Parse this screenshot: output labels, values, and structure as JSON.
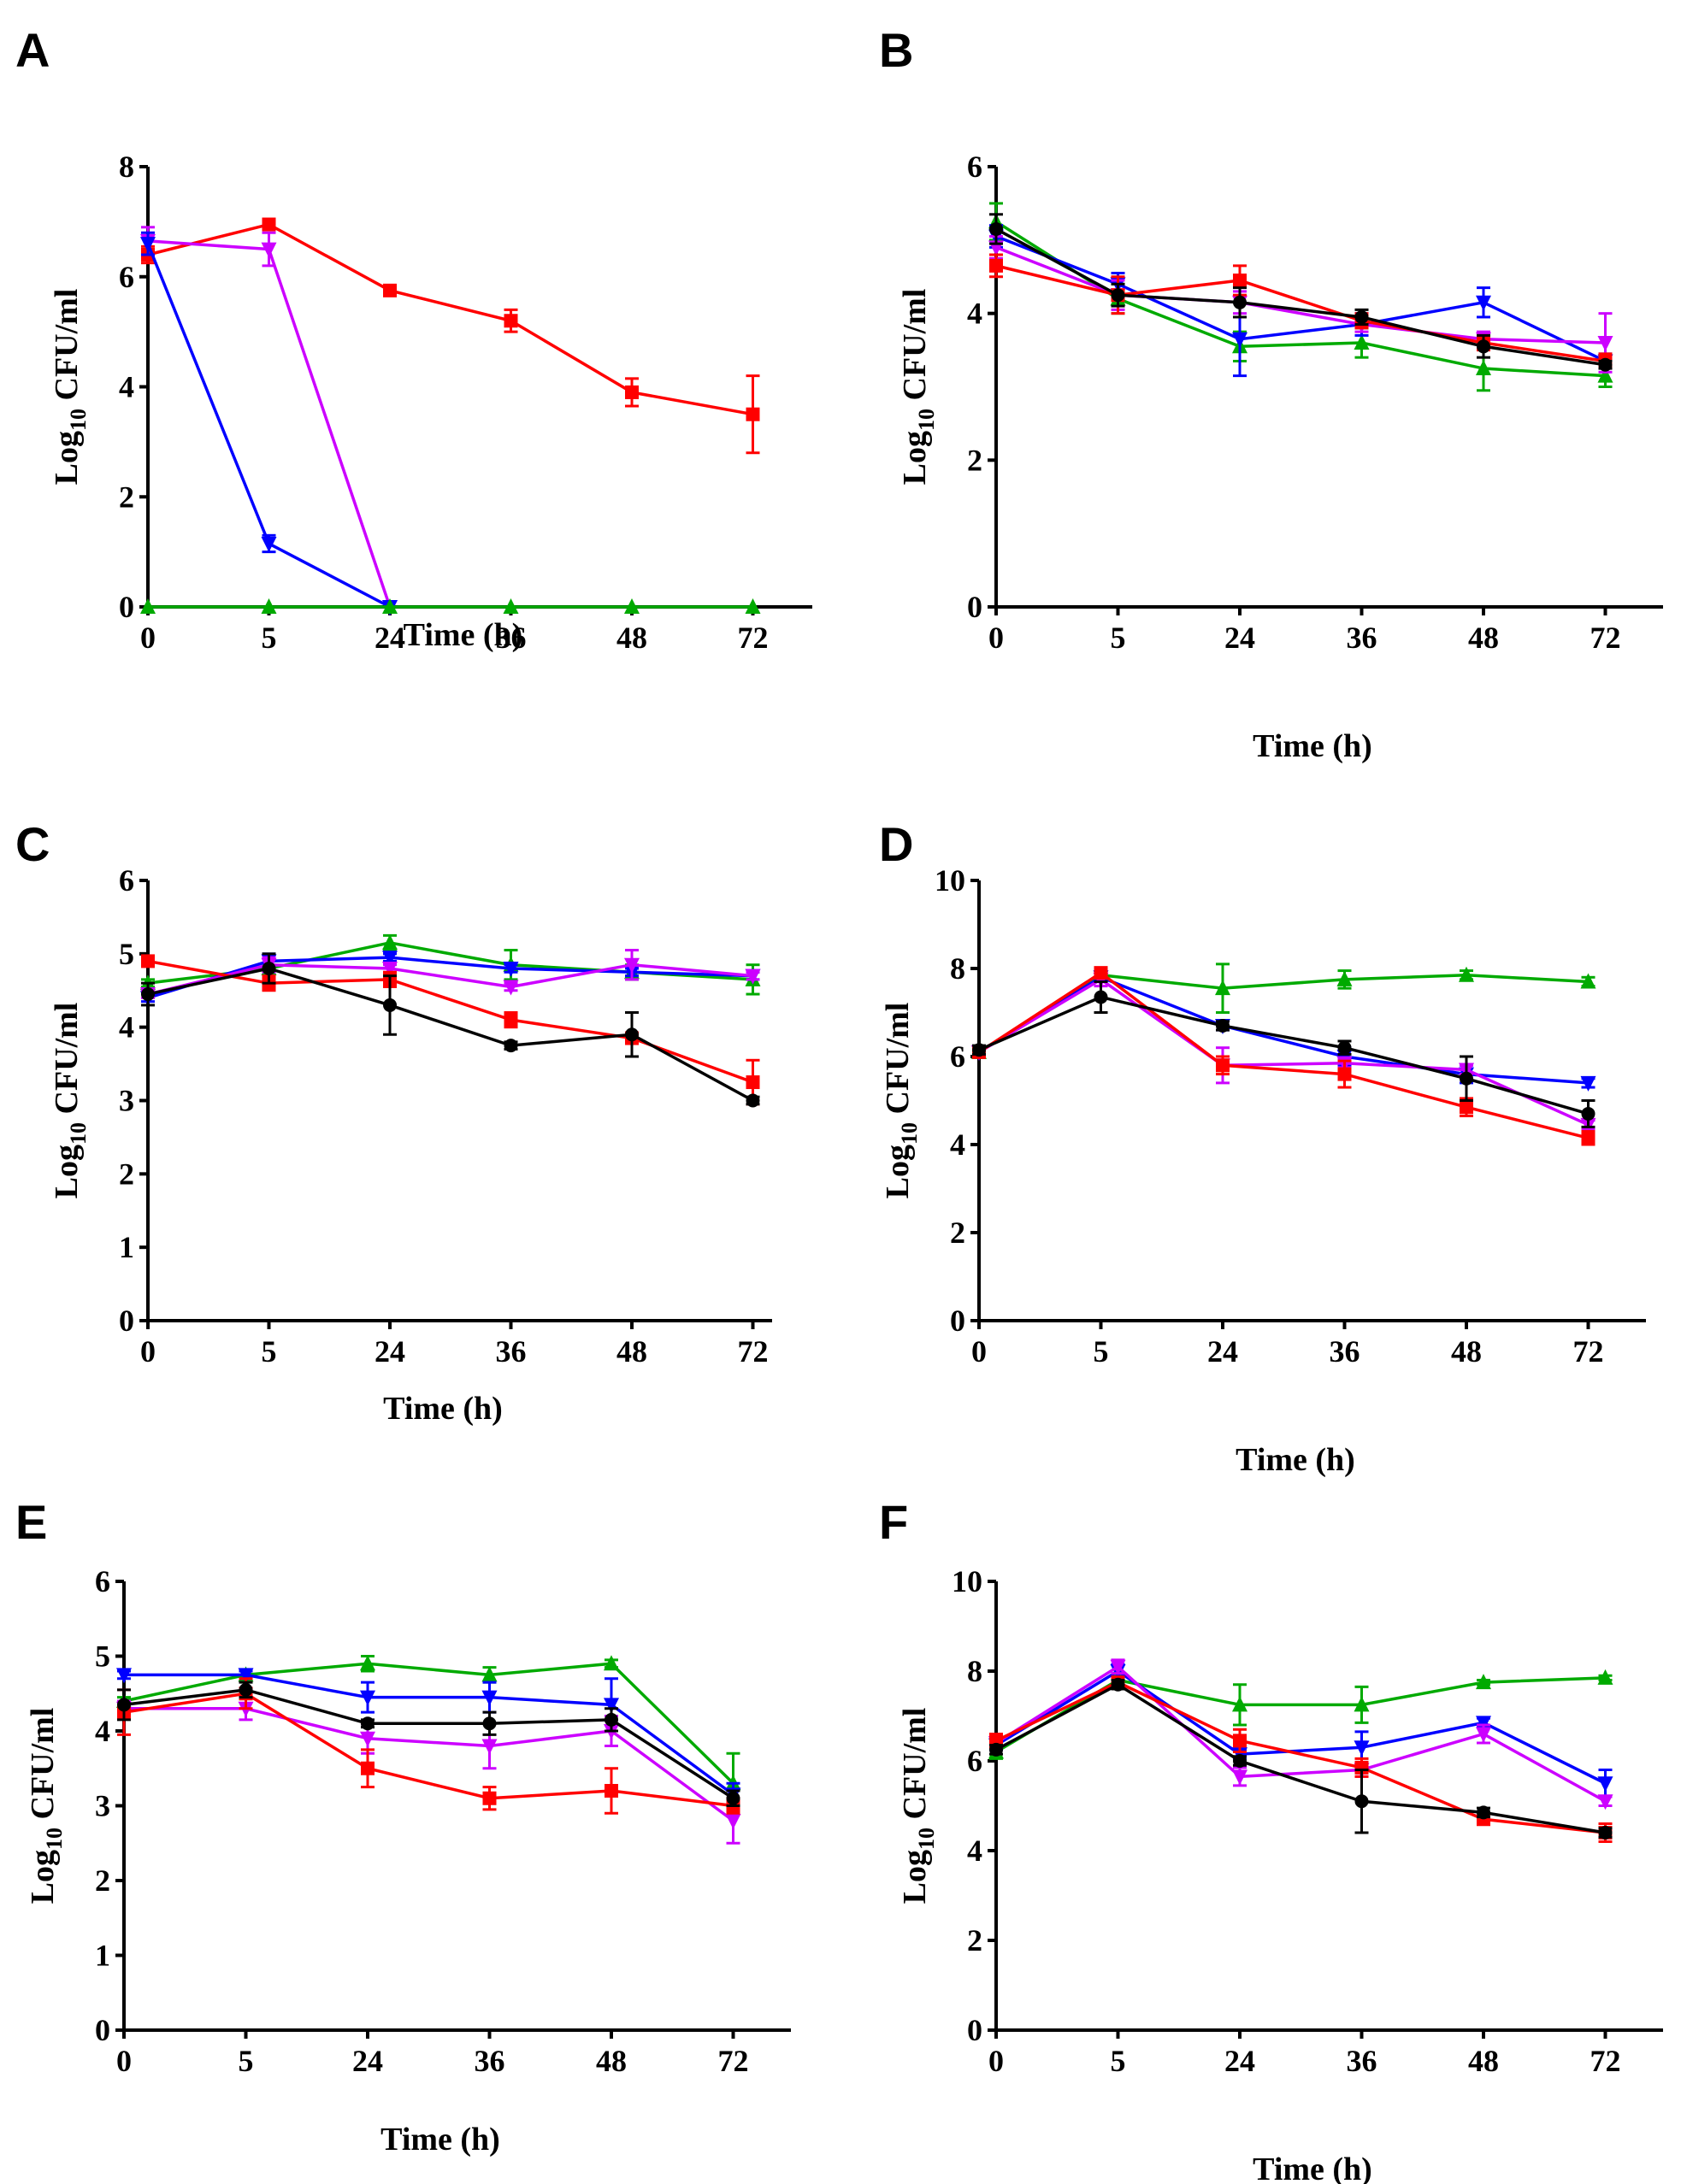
{
  "chart_data": [
    {
      "panel": "A",
      "type": "line",
      "categories": [
        "0",
        "5",
        "24",
        "36",
        "48",
        "72"
      ],
      "xlabel": "Time (h)",
      "ylabel_main": "Log",
      "ylabel_sub": "10",
      "ylabel_tail": " CFU/ml",
      "ylim": [
        0,
        8
      ],
      "yticks": [
        "0",
        "2",
        "4",
        "6",
        "8"
      ],
      "series": [
        {
          "color": "#ff0000",
          "marker": "square",
          "values": [
            6.4,
            6.95,
            5.75,
            5.2,
            3.9,
            3.5
          ],
          "errors": [
            0.15,
            0.1,
            0.05,
            0.2,
            0.25,
            0.7
          ]
        },
        {
          "color": "#cc00ff",
          "marker": "triangle-down",
          "values": [
            6.65,
            6.5,
            0,
            null,
            null,
            null
          ],
          "errors": [
            0.25,
            0.3,
            0,
            0,
            0,
            0
          ]
        },
        {
          "color": "#0000ff",
          "marker": "triangle-down",
          "values": [
            6.6,
            1.15,
            0,
            null,
            null,
            null
          ],
          "errors": [
            0.2,
            0.15,
            0,
            0,
            0,
            0
          ]
        },
        {
          "color": "#00aa00",
          "marker": "triangle",
          "values": [
            0,
            0,
            0,
            0,
            0,
            0
          ],
          "errors": [
            0,
            0,
            0,
            0,
            0,
            0
          ]
        }
      ]
    },
    {
      "panel": "B",
      "type": "line",
      "categories": [
        "0",
        "5",
        "24",
        "36",
        "48",
        "72"
      ],
      "xlabel": "Time (h)",
      "ylabel_main": "Log",
      "ylabel_sub": "10",
      "ylabel_tail": " CFU/ml",
      "ylim": [
        0,
        6
      ],
      "yticks": [
        "0",
        "2",
        "4",
        "6"
      ],
      "series": [
        {
          "color": "#00aa00",
          "marker": "triangle",
          "values": [
            5.25,
            4.2,
            3.55,
            3.6,
            3.25,
            3.15
          ],
          "errors": [
            0.25,
            0.2,
            0.2,
            0.2,
            0.3,
            0.15
          ]
        },
        {
          "color": "#0000ff",
          "marker": "triangle-down",
          "values": [
            5.05,
            4.4,
            3.65,
            3.85,
            4.15,
            3.35
          ],
          "errors": [
            0.15,
            0.15,
            0.5,
            0.15,
            0.2,
            0.1
          ]
        },
        {
          "color": "#cc00ff",
          "marker": "triangle-down",
          "values": [
            4.9,
            4.25,
            4.15,
            3.85,
            3.65,
            3.6
          ],
          "errors": [
            0.15,
            0.2,
            0.15,
            0.1,
            0.1,
            0.4
          ]
        },
        {
          "color": "#ff0000",
          "marker": "square",
          "values": [
            4.65,
            4.25,
            4.45,
            3.9,
            3.6,
            3.35
          ],
          "errors": [
            0.15,
            0.25,
            0.2,
            0.1,
            0.1,
            0.1
          ]
        },
        {
          "color": "#000000",
          "marker": "circle",
          "values": [
            5.15,
            4.25,
            4.15,
            3.95,
            3.55,
            3.3
          ],
          "errors": [
            0.2,
            0.15,
            0.2,
            0.1,
            0.15,
            0.05
          ]
        }
      ]
    },
    {
      "panel": "C",
      "type": "line",
      "categories": [
        "0",
        "5",
        "24",
        "36",
        "48",
        "72"
      ],
      "xlabel": "Time (h)",
      "ylabel_main": "Log",
      "ylabel_sub": "10",
      "ylabel_tail": " CFU/ml",
      "ylim": [
        0,
        6
      ],
      "yticks": [
        "0",
        "1",
        "2",
        "3",
        "4",
        "5",
        "6"
      ],
      "series": [
        {
          "color": "#00aa00",
          "marker": "triangle",
          "values": [
            4.6,
            4.8,
            5.15,
            4.85,
            4.75,
            4.65
          ],
          "errors": [
            0.05,
            0.05,
            0.1,
            0.2,
            0.1,
            0.2
          ]
        },
        {
          "color": "#0000ff",
          "marker": "triangle-down",
          "values": [
            4.4,
            4.9,
            4.95,
            4.8,
            4.75,
            4.7
          ],
          "errors": [
            0.05,
            0.1,
            0.05,
            0.05,
            0.05,
            0.05
          ]
        },
        {
          "color": "#cc00ff",
          "marker": "triangle-down",
          "values": [
            4.45,
            4.85,
            4.8,
            4.55,
            4.85,
            4.7
          ],
          "errors": [
            0.05,
            0.1,
            0.05,
            0.05,
            0.2,
            0.05
          ]
        },
        {
          "color": "#ff0000",
          "marker": "square",
          "values": [
            4.9,
            4.6,
            4.65,
            4.1,
            3.85,
            3.25
          ],
          "errors": [
            0.05,
            0.1,
            0.1,
            0.1,
            0.05,
            0.3
          ]
        },
        {
          "color": "#000000",
          "marker": "circle",
          "values": [
            4.45,
            4.8,
            4.3,
            3.75,
            3.9,
            3.0
          ],
          "errors": [
            0.15,
            0.2,
            0.4,
            0.05,
            0.3,
            0.05
          ]
        }
      ]
    },
    {
      "panel": "D",
      "type": "line",
      "categories": [
        "0",
        "5",
        "24",
        "36",
        "48",
        "72"
      ],
      "xlabel": "Time (h)",
      "ylabel_main": "Log",
      "ylabel_sub": "10",
      "ylabel_tail": " CFU/ml",
      "ylim": [
        0,
        10
      ],
      "yticks": [
        "0",
        "2",
        "4",
        "6",
        "8",
        "10"
      ],
      "series": [
        {
          "color": "#00aa00",
          "marker": "triangle",
          "values": [
            6.1,
            7.85,
            7.55,
            7.75,
            7.85,
            7.7
          ],
          "errors": [
            0.05,
            0.1,
            0.55,
            0.2,
            0.1,
            0.1
          ]
        },
        {
          "color": "#0000ff",
          "marker": "triangle-down",
          "values": [
            6.1,
            7.8,
            6.7,
            6.0,
            5.6,
            5.4
          ],
          "errors": [
            0.1,
            0.1,
            0.1,
            0.2,
            0.2,
            0.1
          ]
        },
        {
          "color": "#cc00ff",
          "marker": "triangle-down",
          "values": [
            6.1,
            7.75,
            5.8,
            5.85,
            5.7,
            4.45
          ],
          "errors": [
            0.1,
            0.15,
            0.4,
            0.1,
            0.1,
            0.1
          ]
        },
        {
          "color": "#ff0000",
          "marker": "square",
          "values": [
            6.1,
            7.9,
            5.8,
            5.6,
            4.85,
            4.15
          ],
          "errors": [
            0.1,
            0.1,
            0.2,
            0.3,
            0.2,
            0.15
          ]
        },
        {
          "color": "#000000",
          "marker": "circle",
          "values": [
            6.15,
            7.35,
            6.7,
            6.2,
            5.5,
            4.7
          ],
          "errors": [
            0.1,
            0.35,
            0.1,
            0.15,
            0.5,
            0.3
          ]
        }
      ]
    },
    {
      "panel": "E",
      "type": "line",
      "categories": [
        "0",
        "5",
        "24",
        "36",
        "48",
        "72"
      ],
      "xlabel": "Time (h)",
      "ylabel_main": "Log",
      "ylabel_sub": "10",
      "ylabel_tail": " CFU/ml",
      "ylim": [
        0,
        6
      ],
      "yticks": [
        "0",
        "1",
        "2",
        "3",
        "4",
        "5",
        "6"
      ],
      "series": [
        {
          "color": "#00aa00",
          "marker": "triangle",
          "values": [
            4.4,
            4.75,
            4.9,
            4.75,
            4.9,
            3.3
          ],
          "errors": [
            0.05,
            0.05,
            0.1,
            0.1,
            0.05,
            0.4
          ]
        },
        {
          "color": "#0000ff",
          "marker": "triangle-down",
          "values": [
            4.75,
            4.75,
            4.45,
            4.45,
            4.35,
            3.15
          ],
          "errors": [
            0.05,
            0.05,
            0.2,
            0.2,
            0.35,
            0.15
          ]
        },
        {
          "color": "#cc00ff",
          "marker": "triangle-down",
          "values": [
            4.3,
            4.3,
            3.9,
            3.8,
            4.0,
            2.8
          ],
          "errors": [
            0.1,
            0.15,
            0.2,
            0.3,
            0.2,
            0.3
          ]
        },
        {
          "color": "#ff0000",
          "marker": "square",
          "values": [
            4.25,
            4.5,
            3.5,
            3.1,
            3.2,
            3.0
          ],
          "errors": [
            0.3,
            0.2,
            0.25,
            0.15,
            0.3,
            0.1
          ]
        },
        {
          "color": "#000000",
          "marker": "circle",
          "values": [
            4.35,
            4.55,
            4.1,
            4.1,
            4.15,
            3.1
          ],
          "errors": [
            0.2,
            0.1,
            0.05,
            0.15,
            0.15,
            0.1
          ]
        }
      ]
    },
    {
      "panel": "F",
      "type": "line",
      "categories": [
        "0",
        "5",
        "24",
        "36",
        "48",
        "72"
      ],
      "xlabel": "Time (h)",
      "ylabel_main": "Log",
      "ylabel_sub": "10",
      "ylabel_tail": " CFU/ml",
      "ylim": [
        0,
        10
      ],
      "yticks": [
        "0",
        "2",
        "4",
        "6",
        "8",
        "10"
      ],
      "series": [
        {
          "color": "#00aa00",
          "marker": "triangle",
          "values": [
            6.2,
            7.8,
            7.25,
            7.25,
            7.75,
            7.85
          ],
          "errors": [
            0.15,
            0.1,
            0.45,
            0.4,
            0.05,
            0.05
          ]
        },
        {
          "color": "#0000ff",
          "marker": "triangle-down",
          "values": [
            6.35,
            8.0,
            6.15,
            6.3,
            6.85,
            5.5
          ],
          "errors": [
            0.1,
            0.15,
            0.1,
            0.35,
            0.1,
            0.3
          ]
        },
        {
          "color": "#cc00ff",
          "marker": "triangle-down",
          "values": [
            6.4,
            8.1,
            5.65,
            5.8,
            6.6,
            5.1
          ],
          "errors": [
            0.1,
            0.15,
            0.2,
            0.15,
            0.2,
            0.1
          ]
        },
        {
          "color": "#ff0000",
          "marker": "square",
          "values": [
            6.45,
            7.75,
            6.45,
            5.85,
            4.7,
            4.4
          ],
          "errors": [
            0.15,
            0.1,
            0.25,
            0.2,
            0.1,
            0.2
          ]
        },
        {
          "color": "#000000",
          "marker": "circle",
          "values": [
            6.25,
            7.7,
            6.0,
            5.1,
            4.85,
            4.4
          ],
          "errors": [
            0.1,
            0.1,
            0.1,
            0.7,
            0.1,
            0.1
          ]
        }
      ]
    }
  ]
}
